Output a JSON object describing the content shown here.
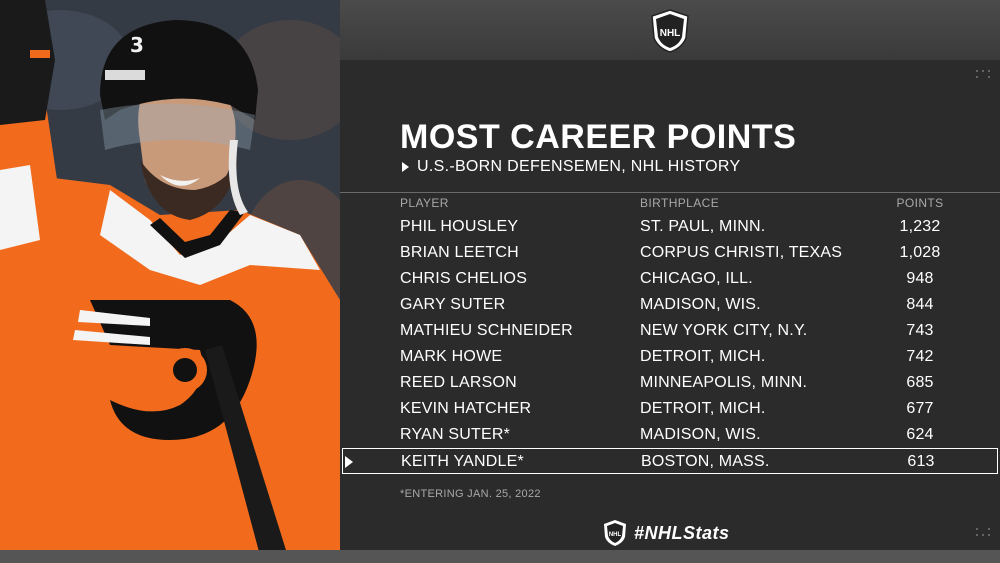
{
  "header": {
    "logo_icon": "nhl-shield-icon",
    "title": "MOST CAREER POINTS",
    "subtitle": "U.S.-BORN DEFENSEMEN, NHL HISTORY"
  },
  "table": {
    "columns": {
      "player": "PLAYER",
      "birthplace": "BIRTHPLACE",
      "points": "POINTS"
    },
    "rows": [
      {
        "player": "PHIL HOUSLEY",
        "birthplace": "ST. PAUL, MINN.",
        "points": "1,232"
      },
      {
        "player": "BRIAN LEETCH",
        "birthplace": "CORPUS CHRISTI, TEXAS",
        "points": "1,028"
      },
      {
        "player": "CHRIS CHELIOS",
        "birthplace": "CHICAGO, ILL.",
        "points": "948"
      },
      {
        "player": "GARY SUTER",
        "birthplace": "MADISON, WIS.",
        "points": "844"
      },
      {
        "player": "MATHIEU SCHNEIDER",
        "birthplace": "NEW YORK CITY, N.Y.",
        "points": "743"
      },
      {
        "player": "MARK HOWE",
        "birthplace": "DETROIT, MICH.",
        "points": "742"
      },
      {
        "player": "REED LARSON",
        "birthplace": "MINNEAPOLIS, MINN.",
        "points": "685"
      },
      {
        "player": "KEVIN HATCHER",
        "birthplace": "DETROIT, MICH.",
        "points": "677"
      },
      {
        "player": "RYAN SUTER*",
        "birthplace": "MADISON, WIS.",
        "points": "624"
      },
      {
        "player": "KEITH YANDLE*",
        "birthplace": "BOSTON, MASS.",
        "points": "613"
      }
    ],
    "highlighted_row_index": 9
  },
  "footnote": "*ENTERING JAN. 25, 2022",
  "brand": {
    "hashtag": "#NHLStats",
    "logo_icon": "nhl-shield-icon"
  },
  "colors": {
    "jersey_orange": "#f26b1d",
    "panel_background": "#2b2b2b",
    "text_white": "#ffffff",
    "text_muted": "#a8a8a8"
  }
}
